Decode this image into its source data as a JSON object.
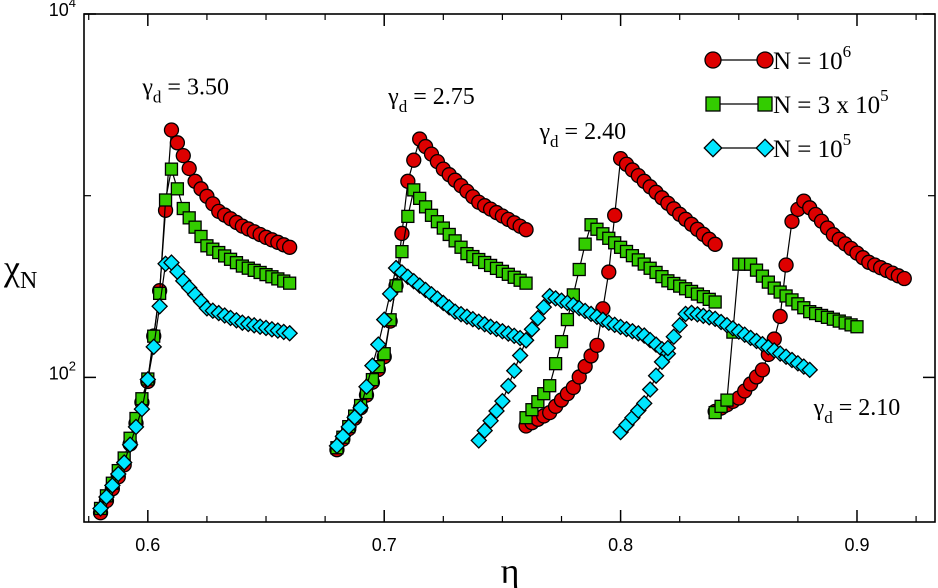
{
  "chart_data": {
    "type": "scatter",
    "title": "",
    "xlabel": "η",
    "ylabel": {
      "main": "χ",
      "sub": "N"
    },
    "xlim": [
      0.573,
      0.933
    ],
    "ylim": [
      16,
      10000
    ],
    "yscale": "log",
    "x_ticks": [
      0.6,
      0.7,
      0.8,
      0.9
    ],
    "x_tick_labels": [
      "0.6",
      "0.7",
      "0.8",
      "0.9"
    ],
    "y_ticks": [
      100,
      10000
    ],
    "y_tick_labels": [
      {
        "base": "10",
        "exp": "2"
      },
      {
        "base": "10",
        "exp": "4"
      }
    ],
    "grid": false,
    "legend_position": "top-right",
    "series": [
      {
        "name": {
          "pre": "N = 10",
          "sup": "6"
        },
        "marker": "circle",
        "color": "#dd0000",
        "segments": [
          {
            "x_start": 0.58,
            "x_end": 0.66,
            "step": 0.0025,
            "peak_x": 0.61,
            "points": [
              [
                0.58,
                18
              ],
              [
                0.59,
                33
              ],
              [
                0.6,
                95
              ],
              [
                0.605,
                300
              ],
              [
                0.61,
                2300
              ],
              [
                0.62,
                1200
              ],
              [
                0.63,
                820
              ],
              [
                0.64,
                680
              ],
              [
                0.65,
                590
              ],
              [
                0.66,
                520
              ]
            ]
          },
          {
            "x_start": 0.68,
            "x_end": 0.76,
            "step": 0.0025,
            "peak_x": 0.715,
            "points": [
              [
                0.68,
                40
              ],
              [
                0.69,
                68
              ],
              [
                0.7,
                130
              ],
              [
                0.705,
                320
              ],
              [
                0.71,
                1200
              ],
              [
                0.715,
                2050
              ],
              [
                0.725,
                1400
              ],
              [
                0.74,
                920
              ],
              [
                0.76,
                650
              ]
            ]
          },
          {
            "x_start": 0.76,
            "x_end": 0.84,
            "step": 0.0025,
            "peak_x": 0.8,
            "points": [
              [
                0.76,
                54
              ],
              [
                0.77,
                64
              ],
              [
                0.78,
                88
              ],
              [
                0.79,
                150
              ],
              [
                0.795,
                380
              ],
              [
                0.8,
                1600
              ],
              [
                0.81,
                1200
              ],
              [
                0.825,
                790
              ],
              [
                0.84,
                540
              ]
            ]
          },
          {
            "x_start": 0.84,
            "x_end": 0.92,
            "step": 0.0025,
            "peak_x": 0.875,
            "points": [
              [
                0.84,
                65
              ],
              [
                0.85,
                77
              ],
              [
                0.86,
                110
              ],
              [
                0.867,
                190
              ],
              [
                0.872,
                700
              ],
              [
                0.877,
                950
              ],
              [
                0.89,
                610
              ],
              [
                0.905,
                430
              ],
              [
                0.92,
                350
              ]
            ]
          }
        ]
      },
      {
        "name": {
          "pre": "N = 3 x 10",
          "sup": "5"
        },
        "marker": "square",
        "color": "#33cc00",
        "segments": [
          {
            "x_start": 0.58,
            "x_end": 0.66,
            "step": 0.0025,
            "peak_x": 0.61,
            "points": [
              [
                0.58,
                19
              ],
              [
                0.59,
                36
              ],
              [
                0.6,
                98
              ],
              [
                0.605,
                290
              ],
              [
                0.608,
                1200
              ],
              [
                0.61,
                1400
              ],
              [
                0.615,
                850
              ],
              [
                0.625,
                530
              ],
              [
                0.64,
                410
              ],
              [
                0.66,
                330
              ]
            ]
          },
          {
            "x_start": 0.68,
            "x_end": 0.76,
            "step": 0.0025,
            "peak_x": 0.712,
            "points": [
              [
                0.68,
                41
              ],
              [
                0.69,
                70
              ],
              [
                0.7,
                135
              ],
              [
                0.707,
                450
              ],
              [
                0.712,
                1100
              ],
              [
                0.72,
                780
              ],
              [
                0.735,
                480
              ],
              [
                0.76,
                330
              ]
            ]
          },
          {
            "x_start": 0.76,
            "x_end": 0.84,
            "step": 0.0025,
            "peak_x": 0.787,
            "points": [
              [
                0.76,
                60
              ],
              [
                0.77,
                90
              ],
              [
                0.778,
                220
              ],
              [
                0.787,
                700
              ],
              [
                0.8,
                520
              ],
              [
                0.82,
                340
              ],
              [
                0.84,
                260
              ]
            ]
          },
          {
            "x_start": 0.84,
            "x_end": 0.9,
            "step": 0.0025,
            "peak_x": 0.852,
            "points": [
              [
                0.84,
                64
              ],
              [
                0.845,
                75
              ],
              [
                0.85,
                420
              ],
              [
                0.855,
                420
              ],
              [
                0.865,
                310
              ],
              [
                0.88,
                230
              ],
              [
                0.9,
                190
              ]
            ]
          }
        ]
      },
      {
        "name": {
          "pre": "N = 10",
          "sup": "5"
        },
        "marker": "diamond",
        "color": "#00e6ff",
        "segments": [
          {
            "x_start": 0.58,
            "x_end": 0.66,
            "step": 0.0025,
            "peak_x": 0.608,
            "points": [
              [
                0.58,
                19
              ],
              [
                0.59,
                34
              ],
              [
                0.598,
                70
              ],
              [
                0.603,
                160
              ],
              [
                0.608,
                470
              ],
              [
                0.615,
                340
              ],
              [
                0.625,
                240
              ],
              [
                0.64,
                200
              ],
              [
                0.66,
                175
              ]
            ]
          },
          {
            "x_start": 0.68,
            "x_end": 0.76,
            "step": 0.0025,
            "peak_x": 0.705,
            "points": [
              [
                0.68,
                42
              ],
              [
                0.69,
                68
              ],
              [
                0.698,
                160
              ],
              [
                0.705,
                400
              ],
              [
                0.715,
                320
              ],
              [
                0.73,
                230
              ],
              [
                0.745,
                190
              ],
              [
                0.76,
                160
              ]
            ]
          },
          {
            "x_start": 0.74,
            "x_end": 0.82,
            "step": 0.0025,
            "peak_x": 0.77,
            "points": [
              [
                0.74,
                45
              ],
              [
                0.75,
                74
              ],
              [
                0.76,
                160
              ],
              [
                0.77,
                280
              ],
              [
                0.78,
                250
              ],
              [
                0.795,
                200
              ],
              [
                0.81,
                170
              ],
              [
                0.82,
                135
              ]
            ]
          },
          {
            "x_start": 0.8,
            "x_end": 0.88,
            "step": 0.0025,
            "peak_x": 0.828,
            "points": [
              [
                0.8,
                50
              ],
              [
                0.81,
                72
              ],
              [
                0.82,
                145
              ],
              [
                0.828,
                230
              ],
              [
                0.84,
                210
              ],
              [
                0.855,
                165
              ],
              [
                0.87,
                130
              ],
              [
                0.88,
                110
              ]
            ]
          }
        ]
      }
    ],
    "annotations": [
      {
        "x": 0.616,
        "y": 3600,
        "pre": "γ",
        "sub": "d",
        "post": " = 3.50"
      },
      {
        "x": 0.72,
        "y": 3200,
        "pre": "γ",
        "sub": "d",
        "post": " = 2.75"
      },
      {
        "x": 0.784,
        "y": 2050,
        "pre": "γ",
        "sub": "d",
        "post": " = 2.40"
      },
      {
        "x": 0.9,
        "y": 62,
        "pre": "γ",
        "sub": "d",
        "post": " = 2.10"
      }
    ]
  }
}
